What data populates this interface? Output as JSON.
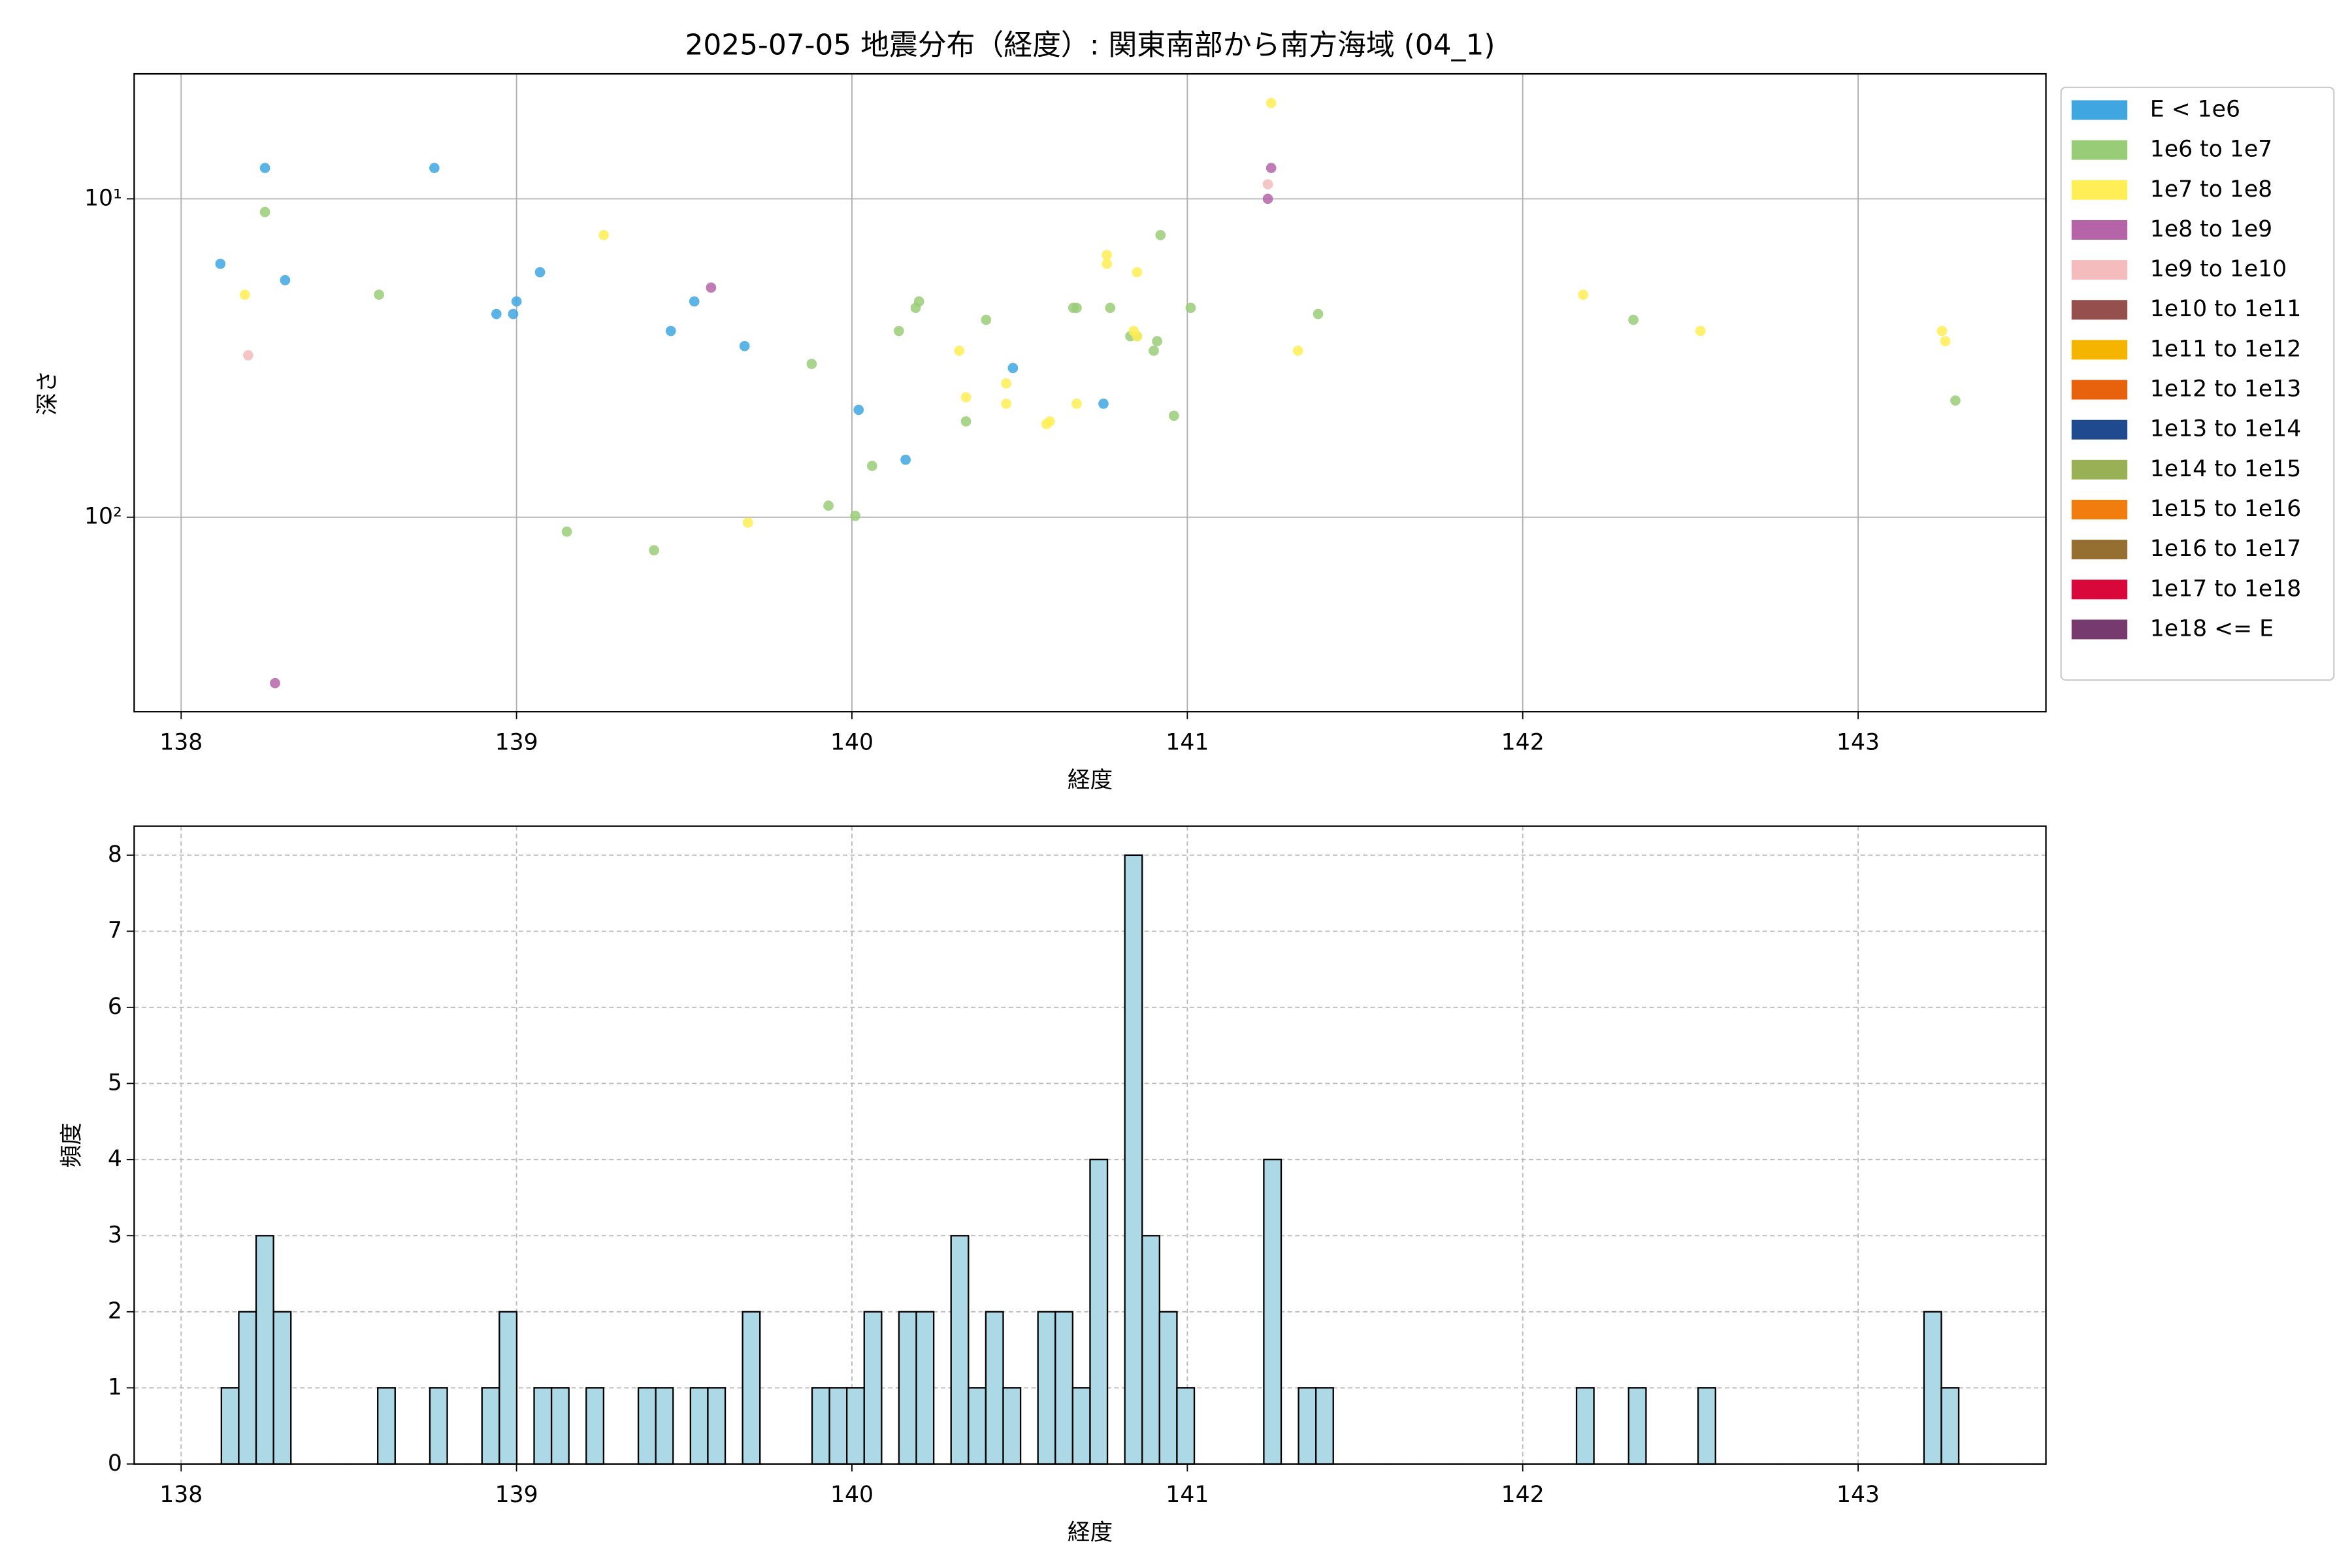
{
  "chart_data": [
    {
      "type": "scatter",
      "title": "2025-07-05 地震分布（経度）: 関東南部から南方海域 (04_1)",
      "xlabel": "経度",
      "ylabel": "深さ",
      "xlim": [
        137.86,
        143.56
      ],
      "ylim": [
        408,
        4.05
      ],
      "yscale": "log",
      "xticks": [
        138,
        139,
        140,
        141,
        142,
        143
      ],
      "yticks": [
        {
          "value": 10,
          "label": "10¹"
        },
        {
          "value": 100,
          "label": "10²"
        }
      ],
      "grid": "solid",
      "legend": "outside-upper-right",
      "series": [
        {
          "name": "E < 1e6",
          "color": "#3fa6e0",
          "x": [
            138.117,
            138.25,
            138.31,
            138.755,
            138.94,
            138.99,
            139.0,
            139.07,
            139.46,
            139.53,
            139.68,
            140.02,
            140.16,
            140.48,
            140.75
          ],
          "values": [
            16,
            8,
            18,
            8,
            23,
            23,
            21,
            17,
            26,
            21,
            29,
            46,
            66,
            34,
            44
          ]
        },
        {
          "name": "1e6 to 1e7",
          "color": "#99cc77",
          "x": [
            138.25,
            138.59,
            139.15,
            139.41,
            139.88,
            139.93,
            140.01,
            140.06,
            140.14,
            140.19,
            140.2,
            140.34,
            140.4,
            140.66,
            140.67,
            140.77,
            140.83,
            140.85,
            140.92,
            140.9,
            140.91,
            140.96,
            141.01,
            141.39,
            142.33,
            143.29
          ],
          "values": [
            11,
            20,
            111,
            127,
            33,
            92,
            99,
            69,
            26,
            22,
            21,
            50,
            24,
            22,
            22,
            22,
            27,
            27,
            13,
            30,
            28,
            48,
            22,
            23,
            24,
            43
          ]
        },
        {
          "name": "1e7 to 1e8",
          "color": "#ffee55",
          "x": [
            141.25,
            138.19,
            139.26,
            139.69,
            140.32,
            140.34,
            140.46,
            140.46,
            140.58,
            140.59,
            140.67,
            140.76,
            140.76,
            140.85,
            140.84,
            140.85,
            141.33,
            142.18,
            142.53,
            143.25,
            143.26
          ],
          "values": [
            5,
            20,
            13,
            104,
            30,
            42,
            38,
            44,
            51,
            50,
            44,
            15,
            16,
            17,
            26,
            27,
            30,
            20,
            26,
            26,
            28
          ]
        },
        {
          "name": "1e8 to 1e9",
          "color": "#b565a7",
          "x": [
            139.58,
            138.28,
            141.24,
            141.25
          ],
          "values": [
            19,
            332,
            10,
            8
          ]
        },
        {
          "name": "1e9 to 1e10",
          "color": "#f4bcbc",
          "x": [
            138.2,
            141.24
          ],
          "values": [
            31,
            9
          ]
        },
        {
          "name": "1e10 to 1e11",
          "color": "#954f4c",
          "x": [],
          "values": []
        },
        {
          "name": "1e11 to 1e12",
          "color": "#f4b400",
          "x": [],
          "values": []
        },
        {
          "name": "1e12 to 1e13",
          "color": "#e8610c",
          "x": [],
          "values": []
        },
        {
          "name": "1e13 to 1e14",
          "color": "#1f4a8f",
          "x": [],
          "values": []
        },
        {
          "name": "1e14 to 1e15",
          "color": "#9ab055",
          "x": [],
          "values": []
        },
        {
          "name": "1e15 to 1e16",
          "color": "#f07d0e",
          "x": [],
          "values": []
        },
        {
          "name": "1e16 to 1e17",
          "color": "#946f31",
          "x": [],
          "values": []
        },
        {
          "name": "1e17 to 1e18",
          "color": "#d9083a",
          "x": [],
          "values": []
        },
        {
          "name": "1e18 <= E",
          "color": "#773a6f",
          "x": [],
          "values": []
        }
      ]
    },
    {
      "type": "histogram",
      "xlabel": "経度",
      "ylabel": "頻度",
      "xlim": [
        137.86,
        143.56
      ],
      "ylim": [
        0,
        8.38
      ],
      "xticks": [
        138,
        139,
        140,
        141,
        142,
        143
      ],
      "yticks": [
        0,
        1,
        2,
        3,
        4,
        5,
        6,
        7,
        8
      ],
      "grid": "dashed",
      "color": "#add8e6",
      "edgecolor": "#000000",
      "bins": [
        138.12,
        138.1718,
        138.2236,
        138.2754,
        138.3272,
        138.379,
        138.4308,
        138.4826,
        138.5344,
        138.5862,
        138.638,
        138.6898,
        138.7416,
        138.7934,
        138.8452,
        138.897,
        138.9488,
        139.0006,
        139.0524,
        139.1042,
        139.156,
        139.2078,
        139.2596,
        139.3114,
        139.3632,
        139.415,
        139.4668,
        139.5186,
        139.5704,
        139.6222,
        139.674,
        139.7258,
        139.7776,
        139.8294,
        139.8812,
        139.933,
        139.9848,
        140.0366,
        140.0884,
        140.1402,
        140.192,
        140.2438,
        140.2956,
        140.3474,
        140.3992,
        140.451,
        140.5028,
        140.5546,
        140.6064,
        140.6582,
        140.71,
        140.7618,
        140.8136,
        140.8654,
        140.9172,
        140.969,
        141.0208,
        141.0726,
        141.1244,
        141.1762,
        141.228,
        141.2798,
        141.3316,
        141.3834,
        141.4352,
        141.487,
        141.5388,
        141.5906,
        141.6424,
        141.6942,
        141.746,
        141.7978,
        141.8496,
        141.9014,
        141.9532,
        142.005,
        142.0568,
        142.1086,
        142.1604,
        142.2122,
        142.264,
        142.3158,
        142.3676,
        142.4194,
        142.4712,
        142.523,
        142.5748,
        142.6266,
        142.6784,
        142.7302,
        142.782,
        142.8338,
        142.8856,
        142.9374,
        142.9892,
        143.041,
        143.0928,
        143.1446,
        143.1964,
        143.2482,
        143.3
      ],
      "values": [
        1,
        2,
        3,
        2,
        0,
        0,
        0,
        0,
        0,
        1,
        0,
        0,
        1,
        0,
        0,
        1,
        2,
        0,
        1,
        1,
        0,
        1,
        0,
        0,
        1,
        1,
        0,
        1,
        1,
        0,
        2,
        0,
        0,
        0,
        1,
        1,
        1,
        2,
        0,
        2,
        2,
        0,
        3,
        1,
        2,
        1,
        0,
        2,
        2,
        1,
        4,
        0,
        8,
        3,
        2,
        1,
        0,
        0,
        0,
        0,
        4,
        0,
        1,
        1,
        0,
        0,
        0,
        0,
        0,
        0,
        0,
        0,
        0,
        0,
        0,
        0,
        0,
        0,
        1,
        0,
        0,
        1,
        0,
        0,
        0,
        1,
        0,
        0,
        0,
        0,
        0,
        0,
        0,
        0,
        0,
        0,
        0,
        0,
        2,
        1
      ]
    }
  ]
}
